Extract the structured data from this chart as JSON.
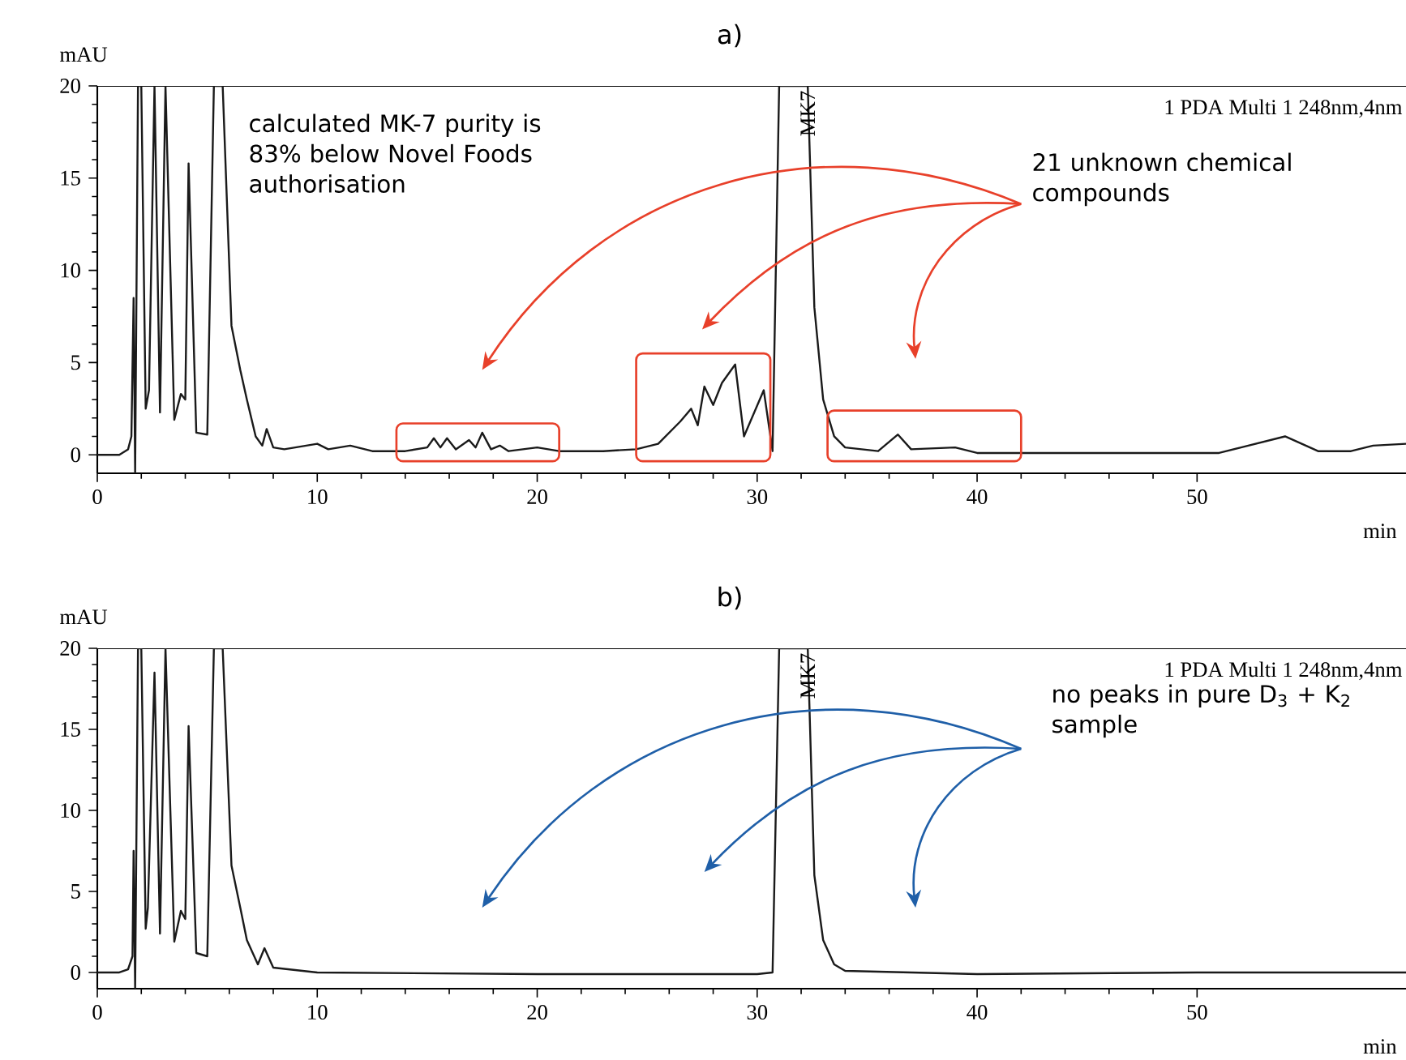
{
  "chart_data": [
    {
      "type": "line",
      "title": "a)",
      "xlabel": "min",
      "ylabel": "mAU",
      "xlim": [
        0,
        59.5
      ],
      "ylim": [
        -1,
        20
      ],
      "xticks": [
        0,
        10,
        20,
        30,
        40,
        50
      ],
      "yticks": [
        0,
        5,
        10,
        15,
        20
      ],
      "grid": false,
      "marker": "none",
      "line_style": "solid",
      "series": [
        {
          "color": "#1a1a1a",
          "x": [
            0,
            1,
            1.4,
            1.55,
            1.65,
            1.72,
            1.85,
            2.0,
            2.2,
            2.35,
            2.6,
            2.85,
            3.1,
            3.5,
            3.8,
            4.0,
            4.15,
            4.5,
            5.0,
            5.3,
            5.7,
            6.1,
            6.5,
            6.8,
            7.2,
            7.5,
            7.7,
            8.0,
            8.5,
            9,
            10,
            10.5,
            11.5,
            12.5,
            14,
            15,
            15.3,
            15.6,
            15.9,
            16.3,
            16.9,
            17.2,
            17.5,
            17.9,
            18.3,
            18.7,
            20,
            21,
            23,
            24.5,
            25.5,
            26.0,
            26.5,
            27.0,
            27.3,
            27.6,
            28.0,
            28.4,
            29.0,
            29.4,
            30.3,
            30.7,
            31.0,
            31.3,
            32.0,
            32.3,
            32.6,
            33.0,
            33.5,
            34,
            35.5,
            36.4,
            37,
            39,
            40,
            45,
            51,
            52,
            54,
            55.5,
            57,
            58,
            59.5
          ],
          "values": [
            0,
            0,
            0.3,
            1.0,
            8.5,
            -1,
            20,
            20,
            2.5,
            3.5,
            20,
            2.3,
            20,
            1.9,
            3.3,
            3.0,
            15.8,
            1.2,
            1.1,
            20,
            20,
            7.0,
            4.6,
            3.0,
            1.0,
            0.5,
            1.4,
            0.4,
            0.3,
            0.4,
            0.6,
            0.3,
            0.5,
            0.2,
            0.2,
            0.4,
            0.9,
            0.4,
            0.9,
            0.3,
            0.8,
            0.4,
            1.2,
            0.3,
            0.5,
            0.2,
            0.4,
            0.2,
            0.2,
            0.3,
            0.6,
            1.2,
            1.8,
            2.5,
            1.6,
            3.7,
            2.7,
            3.9,
            4.9,
            1.0,
            3.5,
            0.2,
            20,
            20,
            20,
            20,
            8,
            3,
            1,
            0.4,
            0.2,
            1.1,
            0.3,
            0.4,
            0.1,
            0.1,
            0.1,
            0.4,
            1.0,
            0.2,
            0.2,
            0.5,
            0.6
          ]
        }
      ],
      "annotations": [
        "1 PDA Multi 1 248nm,4nm",
        {
          "text": "MK7",
          "x": 32.3,
          "y": 20
        },
        "calculated MK-7 purity is 83% below Novel Foods authorisation",
        "21 unknown chemical compounds"
      ]
    },
    {
      "type": "line",
      "title": "b)",
      "xlabel": "min",
      "ylabel": "mAU",
      "xlim": [
        0,
        59.5
      ],
      "ylim": [
        -1,
        20
      ],
      "xticks": [
        0,
        10,
        20,
        30,
        40,
        50
      ],
      "yticks": [
        0,
        5,
        10,
        15,
        20
      ],
      "grid": false,
      "marker": "none",
      "line_style": "solid",
      "series": [
        {
          "color": "#1a1a1a",
          "x": [
            0,
            1,
            1.4,
            1.6,
            1.65,
            1.72,
            1.85,
            2.0,
            2.2,
            2.3,
            2.6,
            2.85,
            3.1,
            3.5,
            3.8,
            4.0,
            4.15,
            4.5,
            5.0,
            5.3,
            5.7,
            6.1,
            6.5,
            6.8,
            7.3,
            7.6,
            8.0,
            10,
            20,
            30,
            30.7,
            31.0,
            31.3,
            32.0,
            32.3,
            32.6,
            33.0,
            33.5,
            34,
            40,
            50,
            59.5
          ],
          "values": [
            0,
            0,
            0.2,
            1.0,
            7.5,
            -1,
            20,
            20,
            2.7,
            4.0,
            18.5,
            2.4,
            20,
            1.9,
            3.8,
            3.3,
            15.2,
            1.2,
            1.0,
            20,
            20,
            6.6,
            4.0,
            2.0,
            0.5,
            1.5,
            0.3,
            0.0,
            -0.1,
            -0.1,
            0,
            20,
            20,
            20,
            20,
            6,
            2,
            0.5,
            0.1,
            -0.1,
            0,
            0
          ]
        }
      ],
      "annotations": [
        "1 PDA Multi 1 248nm,4nm",
        {
          "text": "MK7",
          "x": 32.3,
          "y": 20
        },
        "no peaks in pure D$_{3}$ + K$_{2}$ sample"
      ]
    }
  ]
}
